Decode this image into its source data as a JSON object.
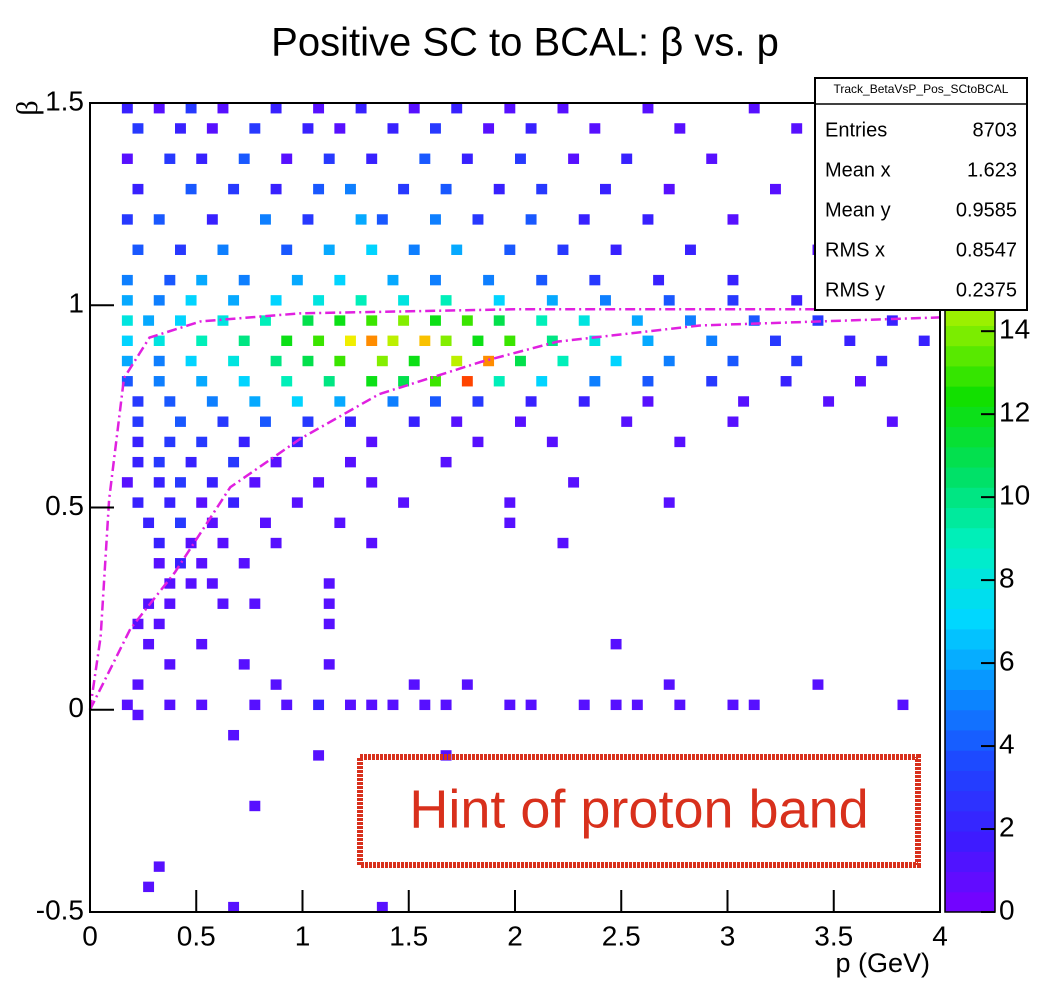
{
  "chart_data": {
    "type": "heatmap",
    "title": "Positive SC to BCAL: β vs. p",
    "x_label": "p (GeV)",
    "y_label": "β",
    "xlim": [
      0,
      4
    ],
    "ylim": [
      -0.5,
      1.5
    ],
    "xticks": [
      0,
      0.5,
      1,
      1.5,
      2,
      2.5,
      3,
      3.5,
      4
    ],
    "yticks": [
      -0.5,
      0,
      0.5,
      1,
      1.5
    ],
    "xbin_width": 0.05,
    "ybin_width": 0.025,
    "zlim": [
      0,
      19.5
    ],
    "zticks": [
      0,
      2,
      4,
      6,
      8,
      10,
      12,
      14
    ],
    "colormap": [
      "#7b00ff",
      "#3c1cff",
      "#1e46ff",
      "#0a8cff",
      "#00d8ff",
      "#00f0c0",
      "#00e060",
      "#10e000",
      "#90f000",
      "#f0f000",
      "#ffa000",
      "#ff2000"
    ],
    "rows": [
      {
        "y": 1.475,
        "x": [
          0.15,
          0.3,
          0.45,
          0.6,
          0.85,
          1.05,
          1.25,
          1.5,
          1.7,
          1.95,
          2.2,
          2.6,
          3.1
        ],
        "values": [
          2,
          1,
          3,
          1,
          2,
          1,
          2,
          1,
          2,
          1,
          1,
          1,
          1
        ]
      },
      {
        "y": 1.425,
        "x": [
          0.2,
          0.4,
          0.55,
          0.75,
          1.0,
          1.15,
          1.4,
          1.6,
          1.85,
          2.05,
          2.35,
          2.75,
          3.3
        ],
        "values": [
          3,
          2,
          1,
          3,
          2,
          1,
          2,
          3,
          1,
          2,
          1,
          1,
          1
        ]
      },
      {
        "y": 1.35,
        "x": [
          0.15,
          0.35,
          0.5,
          0.7,
          0.9,
          1.1,
          1.3,
          1.55,
          1.75,
          2.0,
          2.25,
          2.5,
          2.9,
          3.5
        ],
        "values": [
          1,
          3,
          2,
          4,
          1,
          3,
          2,
          4,
          2,
          3,
          1,
          2,
          1,
          1
        ]
      },
      {
        "y": 1.275,
        "x": [
          0.2,
          0.45,
          0.65,
          0.85,
          1.05,
          1.2,
          1.45,
          1.65,
          1.9,
          2.1,
          2.4,
          2.7,
          3.2
        ],
        "values": [
          2,
          4,
          3,
          2,
          4,
          5,
          3,
          4,
          2,
          3,
          2,
          1,
          1
        ]
      },
      {
        "y": 1.2,
        "x": [
          0.15,
          0.3,
          0.55,
          0.8,
          1.0,
          1.25,
          1.35,
          1.6,
          1.8,
          2.05,
          2.3,
          2.6,
          3.0,
          3.6
        ],
        "values": [
          3,
          4,
          2,
          5,
          3,
          6,
          4,
          5,
          3,
          4,
          2,
          2,
          1,
          1
        ]
      },
      {
        "y": 1.125,
        "x": [
          0.2,
          0.4,
          0.6,
          0.9,
          1.1,
          1.3,
          1.5,
          1.7,
          1.95,
          2.2,
          2.45,
          2.8,
          3.4
        ],
        "values": [
          4,
          3,
          5,
          4,
          6,
          7,
          5,
          6,
          4,
          3,
          2,
          2,
          1
        ]
      },
      {
        "y": 1.05,
        "x": [
          0.15,
          0.35,
          0.5,
          0.7,
          0.95,
          1.15,
          1.4,
          1.6,
          1.85,
          2.1,
          2.35,
          2.65,
          3.0,
          3.7
        ],
        "values": [
          5,
          4,
          6,
          5,
          6,
          7,
          6,
          5,
          5,
          4,
          3,
          2,
          2,
          1
        ]
      },
      {
        "y": 1.0,
        "x": [
          0.15,
          0.3,
          0.45,
          0.65,
          0.85,
          1.05,
          1.25,
          1.45,
          1.65,
          1.9,
          2.15,
          2.4,
          2.7,
          3.0,
          3.3,
          3.6,
          3.9
        ],
        "values": [
          6,
          5,
          7,
          6,
          7,
          8,
          9,
          8,
          9,
          7,
          6,
          5,
          4,
          3,
          2,
          2,
          1
        ]
      },
      {
        "y": 0.95,
        "x": [
          0.15,
          0.25,
          0.4,
          0.6,
          0.8,
          1.0,
          1.15,
          1.3,
          1.45,
          1.6,
          1.75,
          1.9,
          2.1,
          2.3,
          2.55,
          2.8,
          3.1,
          3.4,
          3.75
        ],
        "values": [
          8,
          6,
          7,
          8,
          9,
          11,
          12,
          13,
          14,
          12,
          13,
          11,
          9,
          8,
          6,
          5,
          4,
          3,
          2
        ]
      },
      {
        "y": 0.9,
        "x": [
          0.15,
          0.3,
          0.5,
          0.7,
          0.9,
          1.05,
          1.2,
          1.3,
          1.4,
          1.55,
          1.65,
          1.8,
          1.95,
          2.15,
          2.35,
          2.6,
          2.9,
          3.2,
          3.55,
          3.9
        ],
        "values": [
          7,
          8,
          9,
          10,
          12,
          13,
          16,
          18,
          15,
          17,
          14,
          12,
          13,
          10,
          8,
          6,
          5,
          3,
          2,
          2
        ]
      },
      {
        "y": 0.85,
        "x": [
          0.15,
          0.3,
          0.45,
          0.65,
          0.85,
          1.0,
          1.15,
          1.35,
          1.5,
          1.7,
          1.85,
          2.0,
          2.2,
          2.45,
          2.7,
          3.0,
          3.3,
          3.7
        ],
        "values": [
          6,
          5,
          7,
          8,
          10,
          11,
          13,
          14,
          12,
          15,
          18,
          11,
          9,
          7,
          5,
          4,
          3,
          2
        ]
      },
      {
        "y": 0.8,
        "x": [
          0.15,
          0.3,
          0.5,
          0.7,
          0.9,
          1.1,
          1.3,
          1.45,
          1.6,
          1.75,
          1.9,
          2.1,
          2.35,
          2.6,
          2.9,
          3.25,
          3.6
        ],
        "values": [
          4,
          5,
          6,
          7,
          9,
          10,
          12,
          11,
          13,
          19,
          9,
          7,
          5,
          4,
          3,
          2,
          1
        ]
      },
      {
        "y": 0.75,
        "x": [
          0.2,
          0.35,
          0.55,
          0.75,
          0.95,
          1.15,
          1.4,
          1.6,
          1.8,
          2.05,
          2.3,
          2.6,
          3.05,
          3.45
        ],
        "values": [
          3,
          4,
          5,
          6,
          7,
          6,
          5,
          4,
          3,
          2,
          2,
          1,
          1,
          1
        ]
      },
      {
        "y": 0.7,
        "x": [
          0.2,
          0.4,
          0.6,
          0.8,
          1.0,
          1.2,
          1.5,
          1.7,
          2.0,
          2.5,
          3.0,
          3.75
        ],
        "values": [
          3,
          4,
          3,
          4,
          3,
          2,
          2,
          1,
          1,
          1,
          1,
          1
        ]
      },
      {
        "y": 0.65,
        "x": [
          0.2,
          0.35,
          0.5,
          0.7,
          0.95,
          1.3,
          1.8,
          2.15,
          2.75
        ],
        "values": [
          2,
          3,
          3,
          2,
          2,
          1,
          1,
          1,
          1
        ]
      },
      {
        "y": 0.6,
        "x": [
          0.2,
          0.3,
          0.45,
          0.65,
          0.85,
          1.2,
          1.65
        ],
        "values": [
          2,
          3,
          2,
          3,
          1,
          1,
          1
        ]
      },
      {
        "y": 0.55,
        "x": [
          0.15,
          0.3,
          0.4,
          0.55,
          0.75,
          1.05,
          1.3,
          2.25
        ],
        "values": [
          1,
          2,
          3,
          2,
          1,
          1,
          1,
          1
        ]
      },
      {
        "y": 0.5,
        "x": [
          0.2,
          0.35,
          0.5,
          0.65,
          0.95,
          1.45,
          1.95,
          2.7
        ],
        "values": [
          2,
          2,
          1,
          2,
          1,
          1,
          1,
          1
        ]
      },
      {
        "y": 0.45,
        "x": [
          0.25,
          0.4,
          0.55,
          0.8,
          1.15,
          1.95
        ],
        "values": [
          2,
          3,
          1,
          1,
          1,
          1
        ]
      },
      {
        "y": 0.4,
        "x": [
          0.3,
          0.45,
          0.6,
          0.85,
          1.3,
          2.2
        ],
        "values": [
          2,
          1,
          1,
          1,
          1,
          1
        ]
      },
      {
        "y": 0.35,
        "x": [
          0.3,
          0.4,
          0.5,
          0.7
        ],
        "values": [
          1,
          2,
          1,
          1
        ]
      },
      {
        "y": 0.3,
        "x": [
          0.35,
          0.45,
          0.55,
          1.1
        ],
        "values": [
          1,
          1,
          1,
          1
        ]
      },
      {
        "y": 0.25,
        "x": [
          0.25,
          0.35,
          0.6,
          0.75,
          1.1
        ],
        "values": [
          1,
          1,
          1,
          1,
          1
        ]
      },
      {
        "y": 0.2,
        "x": [
          0.2,
          0.3,
          1.1
        ],
        "values": [
          1,
          1,
          1
        ]
      },
      {
        "y": 0.15,
        "x": [
          0.25,
          0.5,
          2.45
        ],
        "values": [
          1,
          1,
          1
        ]
      },
      {
        "y": 0.1,
        "x": [
          0.35,
          0.7,
          1.1
        ],
        "values": [
          1,
          1,
          1
        ]
      },
      {
        "y": 0.05,
        "x": [
          0.2,
          0.85,
          1.5,
          1.75,
          2.7,
          3.4
        ],
        "values": [
          1,
          1,
          1,
          1,
          1,
          1
        ]
      },
      {
        "y": 0.0,
        "x": [
          0.15,
          0.35,
          0.5,
          0.75,
          0.9,
          1.05,
          1.2,
          1.3,
          1.4,
          1.55,
          1.65,
          1.95,
          2.05,
          2.3,
          2.45,
          2.55,
          2.75,
          3.0,
          3.1,
          3.8
        ],
        "values": [
          1,
          1,
          1,
          1,
          1,
          2,
          1,
          1,
          1,
          1,
          1,
          1,
          1,
          1,
          1,
          1,
          1,
          1,
          1,
          1
        ]
      },
      {
        "y": -0.025,
        "x": [
          0.2
        ],
        "values": [
          1
        ]
      },
      {
        "y": -0.075,
        "x": [
          0.65
        ],
        "values": [
          1
        ]
      },
      {
        "y": -0.125,
        "x": [
          1.05,
          1.65
        ],
        "values": [
          1,
          1
        ]
      },
      {
        "y": -0.25,
        "x": [
          0.75
        ],
        "values": [
          1
        ]
      },
      {
        "y": -0.4,
        "x": [
          0.3
        ],
        "values": [
          1
        ]
      },
      {
        "y": -0.45,
        "x": [
          0.25
        ],
        "values": [
          1
        ]
      },
      {
        "y": -0.5,
        "x": [
          0.65,
          1.35
        ],
        "values": [
          1,
          1
        ]
      }
    ],
    "curves": [
      {
        "color": "#e020e0",
        "x": [
          0,
          0.05,
          0.09,
          0.16,
          0.28,
          0.52,
          0.99,
          2,
          4
        ],
        "y": [
          0,
          0.18,
          0.52,
          0.82,
          0.92,
          0.96,
          0.98,
          0.99,
          0.99
        ]
      },
      {
        "color": "#e020e0",
        "x": [
          0,
          0.19,
          0.4,
          0.66,
          0.99,
          1.36,
          1.84,
          2.2,
          2.87,
          4
        ],
        "y": [
          0,
          0.2,
          0.34,
          0.55,
          0.67,
          0.78,
          0.86,
          0.91,
          0.95,
          0.97
        ]
      }
    ],
    "stats": {
      "title": "Track_BetaVsP_Pos_SCtoBCAL",
      "rows": [
        [
          "Entries",
          "8703"
        ],
        [
          "Mean x",
          "1.623"
        ],
        [
          "Mean y",
          "0.9585"
        ],
        [
          "RMS x",
          "0.8547"
        ],
        [
          "RMS y",
          "0.2375"
        ]
      ]
    },
    "annotation": {
      "text": "Hint of proton band",
      "color": "#d8301c"
    }
  }
}
